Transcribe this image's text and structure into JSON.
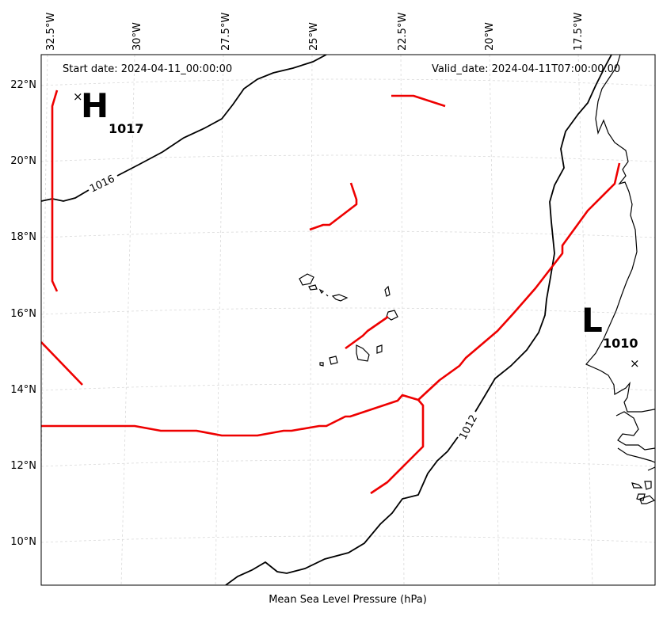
{
  "header": {
    "start_date": "Start date: 2024-04-11_00:00:00",
    "valid_date": "Valid_date: 2024-04-11T07:00:00.00"
  },
  "footer": {
    "caption": "Mean Sea Level Pressure (hPa)"
  },
  "axes": {
    "lon_ticks": [
      "32.5°W",
      "30°W",
      "27.5°W",
      "25°W",
      "22.5°W",
      "20°W",
      "17.5°W"
    ],
    "lat_ticks": [
      "22°N",
      "20°N",
      "18°N",
      "16°N",
      "14°N",
      "12°N",
      "10°N"
    ]
  },
  "pressure_centers": [
    {
      "kind": "high",
      "symbol": "H",
      "value": "1017"
    },
    {
      "kind": "low",
      "symbol": "L",
      "value": "1010"
    }
  ],
  "isobars": [
    {
      "label": "1016"
    },
    {
      "label": "1012"
    }
  ],
  "colors": {
    "front": "#ee0000",
    "isobar": "#000000",
    "grid": "#d9d9d9"
  }
}
